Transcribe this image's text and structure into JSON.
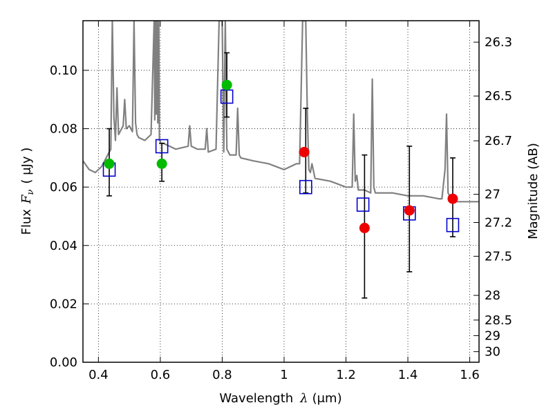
{
  "chart_data": {
    "type": "scatter",
    "x_axis": {
      "label_prefix": "Wavelength",
      "label_symbol": "λ",
      "label_unit": "(μm)",
      "range": [
        0.35,
        1.63
      ],
      "ticks": [
        0.4,
        0.6,
        0.8,
        1.0,
        1.2,
        1.4,
        1.6
      ],
      "tick_labels": [
        "0.4",
        "0.6",
        "0.8",
        "1",
        "1.2",
        "1.4",
        "1.6"
      ]
    },
    "y_axis": {
      "label_prefix": "Flux",
      "label_symbol": "F",
      "label_subscript": "ν",
      "label_unit": "( μJy )",
      "range": [
        0.0,
        0.117
      ],
      "ticks": [
        0.0,
        0.02,
        0.04,
        0.06,
        0.08,
        0.1
      ],
      "tick_labels": [
        "0.00",
        "0.02",
        "0.04",
        "0.06",
        "0.08",
        "0.10"
      ]
    },
    "y2_axis": {
      "label": "Magnitude (AB)",
      "ticks": [
        26.3,
        26.5,
        26.7,
        27,
        27.2,
        27.5,
        28,
        28.5,
        29,
        30
      ],
      "tick_labels": [
        "26.3",
        "26.5",
        "26.7",
        "27",
        "27.2",
        "27.5",
        "28",
        "28.5",
        "29",
        "30"
      ]
    },
    "grid": true,
    "colors": {
      "model": "#808080",
      "green": "#00bb00",
      "red": "#ee0000",
      "box": "#0000cc",
      "err": "#000000"
    },
    "model_spectrum": {
      "x": [
        0.35,
        0.37,
        0.39,
        0.41,
        0.43,
        0.44,
        0.445,
        0.45,
        0.455,
        0.46,
        0.465,
        0.47,
        0.48,
        0.485,
        0.49,
        0.5,
        0.51,
        0.515,
        0.52,
        0.525,
        0.53,
        0.55,
        0.57,
        0.58,
        0.582,
        0.585,
        0.587,
        0.59,
        0.592,
        0.595,
        0.597,
        0.6,
        0.6,
        0.61,
        0.63,
        0.65,
        0.69,
        0.695,
        0.7,
        0.72,
        0.745,
        0.75,
        0.755,
        0.78,
        0.79,
        0.8,
        0.805,
        0.81,
        0.815,
        0.82,
        0.825,
        0.84,
        0.845,
        0.85,
        0.855,
        0.86,
        0.9,
        0.95,
        1.0,
        1.04,
        1.05,
        1.06,
        1.07,
        1.075,
        1.08,
        1.085,
        1.09,
        1.1,
        1.15,
        1.2,
        1.22,
        1.225,
        1.23,
        1.235,
        1.24,
        1.26,
        1.28,
        1.285,
        1.29,
        1.295,
        1.3,
        1.35,
        1.4,
        1.45,
        1.5,
        1.51,
        1.52,
        1.525,
        1.53,
        1.54,
        1.55,
        1.6,
        1.63
      ],
      "y": [
        0.069,
        0.066,
        0.065,
        0.067,
        0.071,
        0.073,
        0.117,
        0.084,
        0.076,
        0.094,
        0.078,
        0.079,
        0.081,
        0.09,
        0.08,
        0.081,
        0.079,
        0.117,
        0.082,
        0.078,
        0.077,
        0.076,
        0.078,
        0.117,
        0.083,
        0.117,
        0.085,
        0.117,
        0.082,
        0.117,
        0.076,
        0.076,
        0.075,
        0.075,
        0.074,
        0.073,
        0.074,
        0.081,
        0.074,
        0.073,
        0.073,
        0.08,
        0.072,
        0.073,
        0.117,
        0.117,
        0.072,
        0.117,
        0.073,
        0.072,
        0.071,
        0.071,
        0.071,
        0.087,
        0.071,
        0.07,
        0.069,
        0.068,
        0.066,
        0.068,
        0.068,
        0.117,
        0.117,
        0.085,
        0.066,
        0.065,
        0.068,
        0.063,
        0.062,
        0.06,
        0.06,
        0.085,
        0.062,
        0.064,
        0.059,
        0.059,
        0.058,
        0.097,
        0.06,
        0.058,
        0.058,
        0.058,
        0.057,
        0.057,
        0.056,
        0.056,
        0.066,
        0.085,
        0.058,
        0.056,
        0.055,
        0.055,
        0.055
      ]
    },
    "photometry_green": [
      {
        "x": 0.435,
        "y": 0.068
      },
      {
        "x": 0.605,
        "y": 0.068
      },
      {
        "x": 0.815,
        "y": 0.095
      }
    ],
    "photometry_red": [
      {
        "x": 1.065,
        "y": 0.072
      },
      {
        "x": 1.26,
        "y": 0.046
      },
      {
        "x": 1.405,
        "y": 0.052
      },
      {
        "x": 1.545,
        "y": 0.056
      }
    ],
    "model_boxes": [
      {
        "x": 0.435,
        "y": 0.066
      },
      {
        "x": 0.605,
        "y": 0.074
      },
      {
        "x": 0.815,
        "y": 0.091
      },
      {
        "x": 1.07,
        "y": 0.06
      },
      {
        "x": 1.255,
        "y": 0.054
      },
      {
        "x": 1.405,
        "y": 0.051
      },
      {
        "x": 1.545,
        "y": 0.047
      }
    ],
    "error_bars": [
      {
        "x": 0.435,
        "lo": 0.057,
        "hi": 0.08
      },
      {
        "x": 0.605,
        "lo": 0.062,
        "hi": 0.075
      },
      {
        "x": 0.815,
        "lo": 0.084,
        "hi": 0.106
      },
      {
        "x": 1.07,
        "lo": 0.058,
        "hi": 0.087
      },
      {
        "x": 1.26,
        "lo": 0.022,
        "hi": 0.071
      },
      {
        "x": 1.405,
        "lo": 0.031,
        "hi": 0.074
      },
      {
        "x": 1.545,
        "lo": 0.043,
        "hi": 0.07
      }
    ]
  }
}
